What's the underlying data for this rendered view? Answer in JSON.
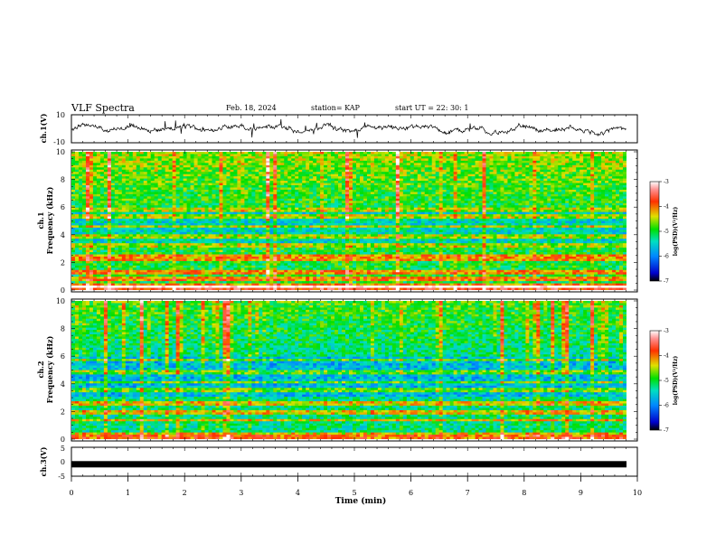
{
  "header": {
    "title": "VLF Spectra",
    "date": "Feb. 18, 2024",
    "station": "station= KAP",
    "start": "start  UT  =   22: 30: 1"
  },
  "colorbar": {
    "label": "log(PSD)(V²/Hz)",
    "ticks": [
      "-3",
      "-4",
      "-5",
      "-6",
      "-7"
    ]
  },
  "chart_data": [
    {
      "type": "line",
      "panel": "ch1-waveform",
      "ylabel": "ch.1(V)",
      "ylim": [
        -10,
        10
      ],
      "y_ticks": [
        "10",
        "-10"
      ],
      "xlim": [
        0,
        10
      ]
    },
    {
      "type": "heatmap",
      "panel": "ch1-spectrogram",
      "ylabel": "ch.1\nFrequency (kHz)",
      "ylim": [
        0,
        10
      ],
      "y_ticks": [
        "10",
        "8",
        "6",
        "4",
        "2",
        "0"
      ],
      "xlim": [
        0,
        10
      ],
      "zlim": [
        -7,
        -3
      ],
      "bands_khz": [
        0.3,
        0.8,
        1.3,
        2.2,
        2.4,
        3.2,
        3.9,
        4.6,
        5.3,
        5.8
      ]
    },
    {
      "type": "heatmap",
      "panel": "ch2-spectrogram",
      "ylabel": "ch.2\nFrequency (kHz)",
      "ylim": [
        0,
        10
      ],
      "y_ticks": [
        "10",
        "8",
        "6",
        "4",
        "2",
        "0"
      ],
      "xlim": [
        0,
        10
      ],
      "zlim": [
        -7,
        -3
      ],
      "bands_khz": [
        0.4,
        1.4,
        1.9,
        2.6,
        3.5,
        4.1,
        4.8,
        5.7
      ]
    },
    {
      "type": "line",
      "panel": "ch3-waveform",
      "ylabel": "ch.3(V)",
      "ylim": [
        -5,
        5
      ],
      "y_ticks": [
        "5",
        "0",
        "-5"
      ],
      "xlim": [
        0,
        10
      ],
      "level": -1.0
    }
  ],
  "x_axis": {
    "label": "Time (min)",
    "ticks": [
      "0",
      "1",
      "2",
      "3",
      "4",
      "5",
      "6",
      "7",
      "8",
      "9",
      "10"
    ]
  }
}
